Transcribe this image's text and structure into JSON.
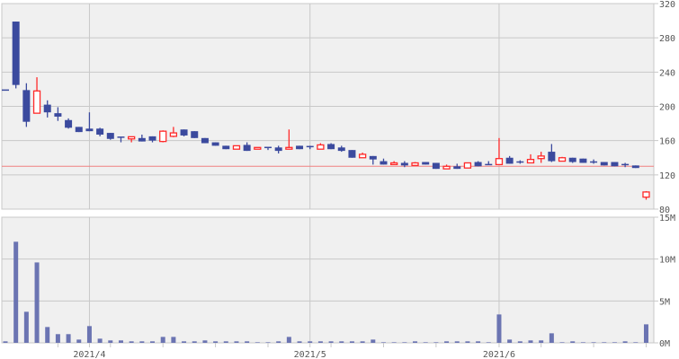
{
  "chart_data": [
    {
      "type": "candlestick",
      "panel": "price",
      "ylim": [
        80,
        320
      ],
      "yticks": [
        "320",
        "280",
        "240",
        "200",
        "160",
        "120",
        "80"
      ],
      "ytick_values": [
        320,
        280,
        240,
        200,
        160,
        120,
        80
      ],
      "grid": true,
      "reference_line": 130,
      "up_color": "#ff2a2a",
      "down_color": "#3b4a9e",
      "reference_line_color": "#f08080",
      "candles_ohlc": [
        [
          219,
          219,
          219,
          219
        ],
        [
          299,
          299,
          221,
          225
        ],
        [
          219,
          227,
          176,
          182
        ],
        [
          192,
          234,
          192,
          218
        ],
        [
          202,
          207,
          187,
          193
        ],
        [
          192,
          199,
          183,
          188
        ],
        [
          184,
          186,
          174,
          175
        ],
        [
          176,
          176,
          170,
          170
        ],
        [
          174,
          193,
          171,
          171
        ],
        [
          174,
          175,
          165,
          167
        ],
        [
          169,
          169,
          161,
          162
        ],
        [
          164,
          164,
          158,
          164
        ],
        [
          162,
          164,
          158,
          164.5
        ],
        [
          163,
          167,
          159,
          159
        ],
        [
          165,
          165,
          158,
          160
        ],
        [
          159,
          172,
          158,
          171
        ],
        [
          165,
          176,
          164,
          169
        ],
        [
          173,
          173,
          165,
          166
        ],
        [
          171,
          171,
          163,
          163
        ],
        [
          163,
          163,
          157,
          157
        ],
        [
          158,
          158,
          154,
          154
        ],
        [
          154,
          154,
          150,
          150
        ],
        [
          150,
          154,
          150,
          154
        ],
        [
          155,
          158,
          148,
          148
        ],
        [
          150,
          152,
          150,
          152
        ],
        [
          152,
          152,
          149,
          152
        ],
        [
          152,
          154,
          145,
          148
        ],
        [
          150,
          173,
          150,
          152
        ],
        [
          154,
          154,
          150,
          150
        ],
        [
          153,
          154,
          150,
          153
        ],
        [
          150,
          157,
          150,
          155
        ],
        [
          156,
          157,
          150,
          150
        ],
        [
          152,
          154,
          147,
          148
        ],
        [
          149,
          149,
          140,
          140
        ],
        [
          140,
          146,
          140,
          144
        ],
        [
          142,
          142,
          132,
          138
        ],
        [
          136,
          139,
          132,
          132
        ],
        [
          132,
          136,
          132,
          134
        ],
        [
          134,
          136,
          129,
          131
        ],
        [
          131,
          135,
          131,
          134
        ],
        [
          135,
          135,
          132,
          132
        ],
        [
          134,
          134,
          127,
          127
        ],
        [
          127,
          132,
          127,
          130
        ],
        [
          130,
          133,
          127,
          127
        ],
        [
          128,
          134,
          128,
          134
        ],
        [
          135,
          136,
          130,
          130
        ],
        [
          132,
          136,
          132,
          132
        ],
        [
          132,
          163,
          132,
          139
        ],
        [
          140,
          142,
          133,
          133
        ],
        [
          135,
          137,
          133,
          135
        ],
        [
          134,
          144,
          134,
          138
        ],
        [
          139,
          147,
          134,
          142
        ],
        [
          147,
          156,
          135,
          136
        ],
        [
          136,
          141,
          136,
          140
        ],
        [
          140,
          140,
          134,
          135
        ],
        [
          139,
          139,
          134,
          134
        ],
        [
          135,
          138,
          133,
          135
        ],
        [
          135,
          135,
          131,
          131
        ],
        [
          135,
          135,
          130,
          130
        ],
        [
          132,
          134,
          129,
          132
        ],
        [
          131,
          131,
          128,
          128
        ],
        [
          94,
          101,
          91,
          100
        ]
      ]
    },
    {
      "type": "bar",
      "panel": "volume",
      "ylim": [
        0,
        15
      ],
      "unit": "M",
      "yticks": [
        "15M",
        "10M",
        "5M",
        "0M"
      ],
      "ytick_values": [
        15,
        10,
        5,
        0
      ],
      "grid": true,
      "bar_color": "#6b74b2",
      "values": [
        0.18,
        12.07,
        3.71,
        9.6,
        1.89,
        1.04,
        1.04,
        0.39,
        2.0,
        0.5,
        0.29,
        0.29,
        0.18,
        0.18,
        0.18,
        0.71,
        0.71,
        0.18,
        0.18,
        0.29,
        0.18,
        0.18,
        0.18,
        0.18,
        0.07,
        0.07,
        0.18,
        0.71,
        0.18,
        0.18,
        0.18,
        0.18,
        0.18,
        0.18,
        0.18,
        0.39,
        0.07,
        0.07,
        0.07,
        0.18,
        0.07,
        0.07,
        0.18,
        0.18,
        0.18,
        0.18,
        0.07,
        3.39,
        0.39,
        0.18,
        0.29,
        0.29,
        1.14,
        0.07,
        0.18,
        0.07,
        0.07,
        0.07,
        0.07,
        0.18,
        0.07,
        2.21
      ]
    }
  ],
  "xaxis": {
    "labels": [
      "2021/4",
      "2021/5",
      "2021/6"
    ],
    "label_indices": [
      8,
      29,
      47
    ],
    "minor_tick_indices": [
      5,
      10,
      15,
      20,
      25,
      31,
      36,
      41,
      51,
      56,
      61
    ]
  }
}
